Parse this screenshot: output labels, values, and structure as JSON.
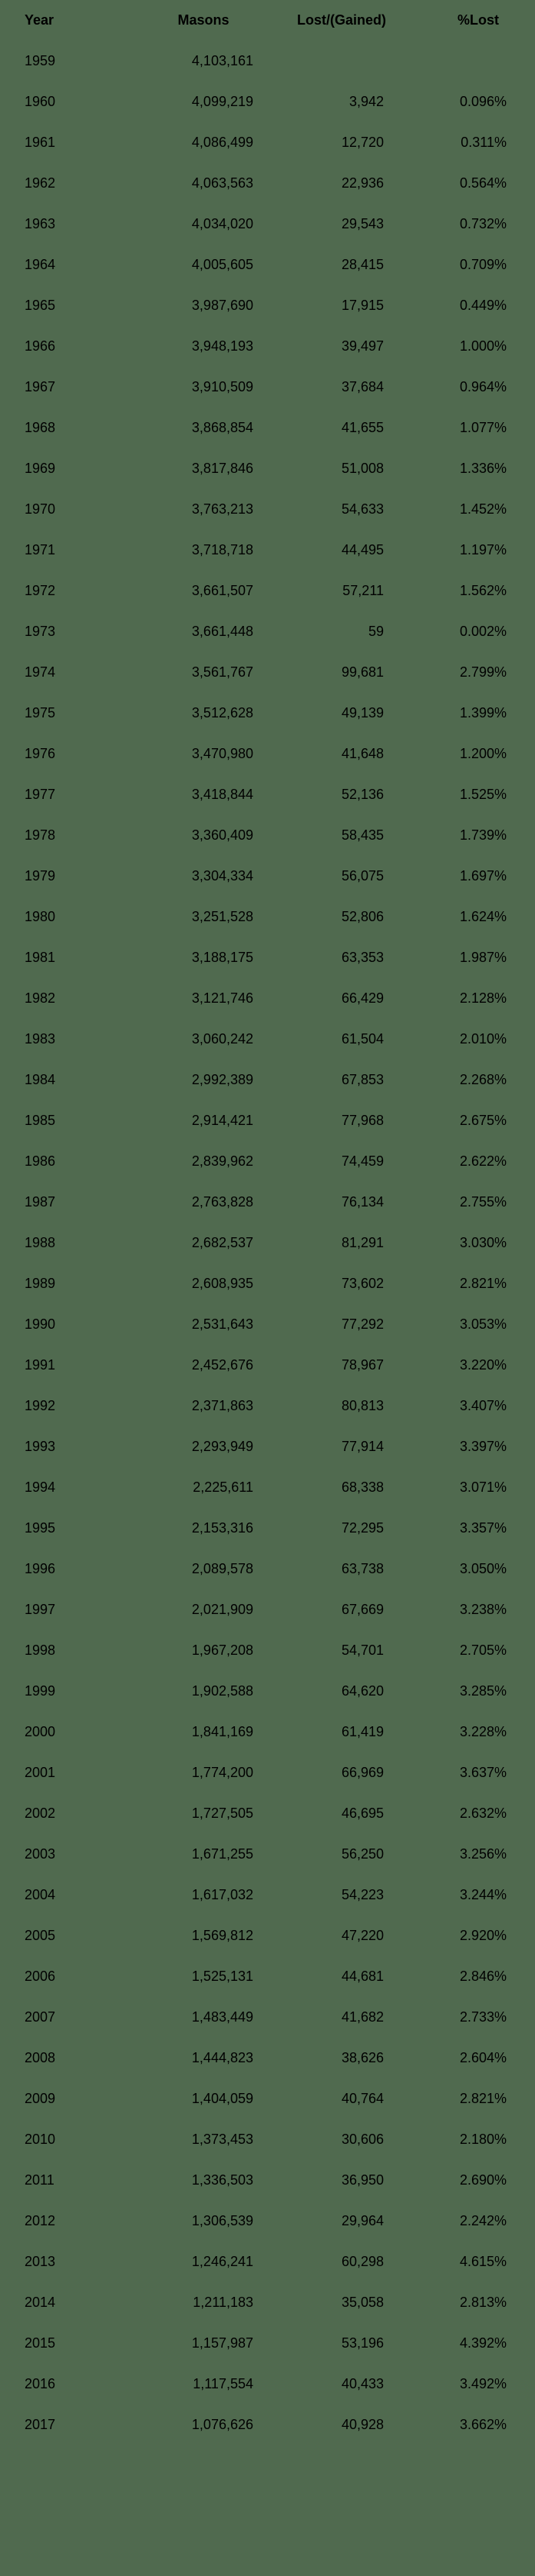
{
  "table": {
    "headers": {
      "year": "Year",
      "masons": "Masons",
      "lost": "Lost/(Gained)",
      "pct": "%Lost"
    },
    "background_color": "#506a4f",
    "text_color": "#000000",
    "header_fontweight": 700,
    "fontsize": 18,
    "rows": [
      {
        "year": "1959",
        "masons": "4,103,161",
        "lost": "",
        "pct": ""
      },
      {
        "year": "1960",
        "masons": "4,099,219",
        "lost": "3,942",
        "pct": "0.096%"
      },
      {
        "year": "1961",
        "masons": "4,086,499",
        "lost": "12,720",
        "pct": "0.311%"
      },
      {
        "year": "1962",
        "masons": "4,063,563",
        "lost": "22,936",
        "pct": "0.564%"
      },
      {
        "year": "1963",
        "masons": "4,034,020",
        "lost": "29,543",
        "pct": "0.732%"
      },
      {
        "year": "1964",
        "masons": "4,005,605",
        "lost": "28,415",
        "pct": "0.709%"
      },
      {
        "year": "1965",
        "masons": "3,987,690",
        "lost": "17,915",
        "pct": "0.449%"
      },
      {
        "year": "1966",
        "masons": "3,948,193",
        "lost": "39,497",
        "pct": "1.000%"
      },
      {
        "year": "1967",
        "masons": "3,910,509",
        "lost": "37,684",
        "pct": "0.964%"
      },
      {
        "year": "1968",
        "masons": "3,868,854",
        "lost": "41,655",
        "pct": "1.077%"
      },
      {
        "year": "1969",
        "masons": "3,817,846",
        "lost": "51,008",
        "pct": "1.336%"
      },
      {
        "year": "1970",
        "masons": "3,763,213",
        "lost": "54,633",
        "pct": "1.452%"
      },
      {
        "year": "1971",
        "masons": "3,718,718",
        "lost": "44,495",
        "pct": "1.197%"
      },
      {
        "year": "1972",
        "masons": "3,661,507",
        "lost": "57,211",
        "pct": "1.562%"
      },
      {
        "year": "1973",
        "masons": "3,661,448",
        "lost": "59",
        "pct": "0.002%"
      },
      {
        "year": "1974",
        "masons": "3,561,767",
        "lost": "99,681",
        "pct": "2.799%"
      },
      {
        "year": "1975",
        "masons": "3,512,628",
        "lost": "49,139",
        "pct": "1.399%"
      },
      {
        "year": "1976",
        "masons": "3,470,980",
        "lost": "41,648",
        "pct": "1.200%"
      },
      {
        "year": "1977",
        "masons": "3,418,844",
        "lost": "52,136",
        "pct": "1.525%"
      },
      {
        "year": "1978",
        "masons": "3,360,409",
        "lost": "58,435",
        "pct": "1.739%"
      },
      {
        "year": "1979",
        "masons": "3,304,334",
        "lost": "56,075",
        "pct": "1.697%"
      },
      {
        "year": "1980",
        "masons": "3,251,528",
        "lost": "52,806",
        "pct": "1.624%"
      },
      {
        "year": "1981",
        "masons": "3,188,175",
        "lost": "63,353",
        "pct": "1.987%"
      },
      {
        "year": "1982",
        "masons": "3,121,746",
        "lost": "66,429",
        "pct": "2.128%"
      },
      {
        "year": "1983",
        "masons": "3,060,242",
        "lost": "61,504",
        "pct": "2.010%"
      },
      {
        "year": "1984",
        "masons": "2,992,389",
        "lost": "67,853",
        "pct": "2.268%"
      },
      {
        "year": "1985",
        "masons": "2,914,421",
        "lost": "77,968",
        "pct": "2.675%"
      },
      {
        "year": "1986",
        "masons": "2,839,962",
        "lost": "74,459",
        "pct": "2.622%"
      },
      {
        "year": "1987",
        "masons": "2,763,828",
        "lost": "76,134",
        "pct": "2.755%"
      },
      {
        "year": "1988",
        "masons": "2,682,537",
        "lost": "81,291",
        "pct": "3.030%"
      },
      {
        "year": "1989",
        "masons": "2,608,935",
        "lost": "73,602",
        "pct": "2.821%"
      },
      {
        "year": "1990",
        "masons": "2,531,643",
        "lost": "77,292",
        "pct": "3.053%"
      },
      {
        "year": "1991",
        "masons": "2,452,676",
        "lost": "78,967",
        "pct": "3.220%"
      },
      {
        "year": "1992",
        "masons": "2,371,863",
        "lost": "80,813",
        "pct": "3.407%"
      },
      {
        "year": "1993",
        "masons": "2,293,949",
        "lost": "77,914",
        "pct": "3.397%"
      },
      {
        "year": "1994",
        "masons": "2,225,611",
        "lost": "68,338",
        "pct": "3.071%"
      },
      {
        "year": "1995",
        "masons": "2,153,316",
        "lost": "72,295",
        "pct": "3.357%"
      },
      {
        "year": "1996",
        "masons": "2,089,578",
        "lost": "63,738",
        "pct": "3.050%"
      },
      {
        "year": "1997",
        "masons": "2,021,909",
        "lost": "67,669",
        "pct": "3.238%"
      },
      {
        "year": "1998",
        "masons": "1,967,208",
        "lost": "54,701",
        "pct": "2.705%"
      },
      {
        "year": "1999",
        "masons": "1,902,588",
        "lost": "64,620",
        "pct": "3.285%"
      },
      {
        "year": "2000",
        "masons": "1,841,169",
        "lost": "61,419",
        "pct": "3.228%"
      },
      {
        "year": "2001",
        "masons": "1,774,200",
        "lost": "66,969",
        "pct": "3.637%"
      },
      {
        "year": "2002",
        "masons": "1,727,505",
        "lost": "46,695",
        "pct": "2.632%"
      },
      {
        "year": "2003",
        "masons": "1,671,255",
        "lost": "56,250",
        "pct": "3.256%"
      },
      {
        "year": "2004",
        "masons": "1,617,032",
        "lost": "54,223",
        "pct": "3.244%"
      },
      {
        "year": "2005",
        "masons": "1,569,812",
        "lost": "47,220",
        "pct": "2.920%"
      },
      {
        "year": "2006",
        "masons": "1,525,131",
        "lost": "44,681",
        "pct": "2.846%"
      },
      {
        "year": "2007",
        "masons": "1,483,449",
        "lost": "41,682",
        "pct": "2.733%"
      },
      {
        "year": "2008",
        "masons": "1,444,823",
        "lost": "38,626",
        "pct": "2.604%"
      },
      {
        "year": "2009",
        "masons": "1,404,059",
        "lost": "40,764",
        "pct": "2.821%"
      },
      {
        "year": "2010",
        "masons": "1,373,453",
        "lost": "30,606",
        "pct": "2.180%"
      },
      {
        "year": "2011",
        "masons": "1,336,503",
        "lost": "36,950",
        "pct": "2.690%"
      },
      {
        "year": "2012",
        "masons": "1,306,539",
        "lost": "29,964",
        "pct": "2.242%"
      },
      {
        "year": "2013",
        "masons": "1,246,241",
        "lost": "60,298",
        "pct": "4.615%"
      },
      {
        "year": "2014",
        "masons": "1,211,183",
        "lost": "35,058",
        "pct": "2.813%"
      },
      {
        "year": "2015",
        "masons": "1,157,987",
        "lost": "53,196",
        "pct": "4.392%"
      },
      {
        "year": "2016",
        "masons": "1,117,554",
        "lost": "40,433",
        "pct": "3.492%"
      },
      {
        "year": "2017",
        "masons": "1,076,626",
        "lost": "40,928",
        "pct": "3.662%"
      }
    ]
  }
}
